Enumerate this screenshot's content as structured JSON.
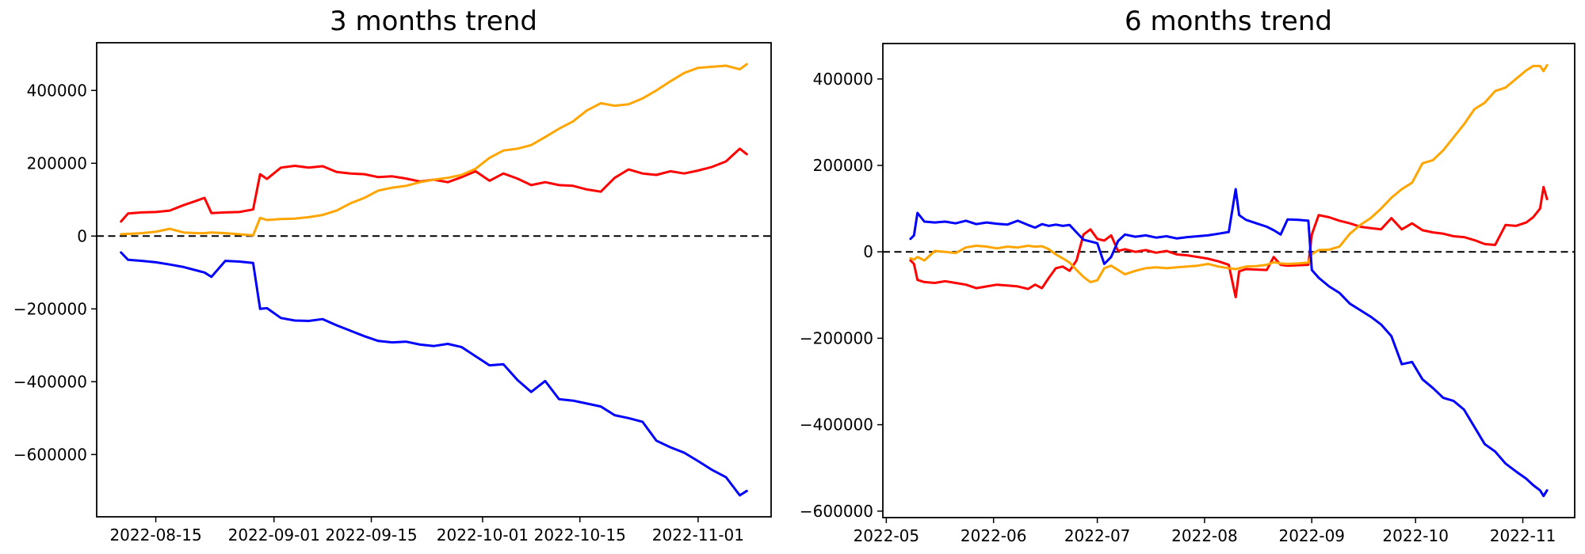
{
  "figure": {
    "background": "#ffffff"
  },
  "colors": {
    "red": "#ff0000",
    "orange": "#ffa500",
    "blue": "#0000ff",
    "zero_line": "#000000",
    "spine": "#000000"
  },
  "chart_data": [
    {
      "type": "line",
      "title": "3 months trend",
      "xlabel": "",
      "ylabel": "",
      "grid": false,
      "legend": null,
      "xlim": [
        "2022-08-06T12:00:00Z",
        "2022-11-11T12:00:00Z"
      ],
      "ylim": [
        -771000,
        531000
      ],
      "yticks": [
        -600000,
        -400000,
        -200000,
        0,
        200000,
        400000
      ],
      "xticks": [
        {
          "date": "2022-08-15",
          "label": "2022-08-15"
        },
        {
          "date": "2022-09-01",
          "label": "2022-09-01"
        },
        {
          "date": "2022-09-15",
          "label": "2022-09-15"
        },
        {
          "date": "2022-10-01",
          "label": "2022-10-01"
        },
        {
          "date": "2022-10-15",
          "label": "2022-10-15"
        },
        {
          "date": "2022-11-01",
          "label": "2022-11-01"
        }
      ],
      "zero_line": {
        "style": "dashed",
        "color": "#000000",
        "y": 0
      },
      "x": [
        "2022-08-10",
        "2022-08-11",
        "2022-08-13",
        "2022-08-15",
        "2022-08-17",
        "2022-08-19",
        "2022-08-21",
        "2022-08-22",
        "2022-08-23",
        "2022-08-25",
        "2022-08-27",
        "2022-08-29",
        "2022-08-30",
        "2022-08-31",
        "2022-09-02",
        "2022-09-04",
        "2022-09-06",
        "2022-09-08",
        "2022-09-10",
        "2022-09-12",
        "2022-09-14",
        "2022-09-16",
        "2022-09-18",
        "2022-09-20",
        "2022-09-22",
        "2022-09-24",
        "2022-09-26",
        "2022-09-28",
        "2022-09-30",
        "2022-10-02",
        "2022-10-04",
        "2022-10-06",
        "2022-10-08",
        "2022-10-10",
        "2022-10-12",
        "2022-10-14",
        "2022-10-16",
        "2022-10-18",
        "2022-10-20",
        "2022-10-22",
        "2022-10-24",
        "2022-10-26",
        "2022-10-28",
        "2022-10-30",
        "2022-11-01",
        "2022-11-03",
        "2022-11-05",
        "2022-11-07",
        "2022-11-08"
      ],
      "series": [
        {
          "name": "red",
          "color": "#ff0000",
          "values": [
            40000,
            62000,
            65000,
            66000,
            70000,
            85000,
            98000,
            105000,
            63000,
            65000,
            66000,
            73000,
            170000,
            157000,
            188000,
            193000,
            188000,
            192000,
            176000,
            172000,
            170000,
            162000,
            164000,
            158000,
            150000,
            155000,
            148000,
            162000,
            178000,
            152000,
            172000,
            158000,
            140000,
            148000,
            140000,
            138000,
            128000,
            122000,
            160000,
            183000,
            172000,
            168000,
            178000,
            172000,
            180000,
            190000,
            205000,
            240000,
            225000
          ]
        },
        {
          "name": "orange",
          "color": "#ffa500",
          "values": [
            5000,
            6000,
            8000,
            12000,
            20000,
            10000,
            8000,
            8000,
            10000,
            8000,
            5000,
            2000,
            50000,
            44000,
            47000,
            48000,
            52000,
            58000,
            70000,
            90000,
            105000,
            125000,
            133000,
            138000,
            148000,
            155000,
            160000,
            168000,
            185000,
            215000,
            235000,
            240000,
            250000,
            272000,
            295000,
            315000,
            345000,
            365000,
            358000,
            362000,
            378000,
            400000,
            425000,
            448000,
            462000,
            465000,
            468000,
            458000,
            472000
          ]
        },
        {
          "name": "blue",
          "color": "#0000ff",
          "values": [
            -45000,
            -65000,
            -68000,
            -72000,
            -78000,
            -85000,
            -95000,
            -100000,
            -112000,
            -68000,
            -70000,
            -74000,
            -200000,
            -198000,
            -225000,
            -232000,
            -233000,
            -228000,
            -245000,
            -260000,
            -275000,
            -288000,
            -292000,
            -290000,
            -298000,
            -302000,
            -296000,
            -305000,
            -330000,
            -355000,
            -352000,
            -395000,
            -428000,
            -398000,
            -448000,
            -452000,
            -460000,
            -468000,
            -492000,
            -500000,
            -510000,
            -562000,
            -580000,
            -595000,
            -618000,
            -642000,
            -662000,
            -712000,
            -700000
          ]
        }
      ]
    },
    {
      "type": "line",
      "title": "6 months trend",
      "xlabel": "",
      "ylabel": "",
      "grid": false,
      "legend": null,
      "xlim": [
        "2022-04-30T00:00:00Z",
        "2022-11-16T00:00:00Z"
      ],
      "ylim": [
        -615000,
        482000
      ],
      "yticks": [
        -600000,
        -400000,
        -200000,
        0,
        200000,
        400000
      ],
      "xticks": [
        {
          "date": "2022-05-01",
          "label": "2022-05"
        },
        {
          "date": "2022-06-01",
          "label": "2022-06"
        },
        {
          "date": "2022-07-01",
          "label": "2022-07"
        },
        {
          "date": "2022-08-01",
          "label": "2022-08"
        },
        {
          "date": "2022-09-01",
          "label": "2022-09"
        },
        {
          "date": "2022-10-01",
          "label": "2022-10"
        },
        {
          "date": "2022-11-01",
          "label": "2022-11"
        }
      ],
      "zero_line": {
        "style": "dashed",
        "color": "#000000",
        "y": 0
      },
      "x": [
        "2022-05-08",
        "2022-05-09",
        "2022-05-10",
        "2022-05-12",
        "2022-05-15",
        "2022-05-18",
        "2022-05-21",
        "2022-05-24",
        "2022-05-27",
        "2022-05-30",
        "2022-06-02",
        "2022-06-05",
        "2022-06-08",
        "2022-06-11",
        "2022-06-13",
        "2022-06-15",
        "2022-06-17",
        "2022-06-19",
        "2022-06-21",
        "2022-06-23",
        "2022-06-25",
        "2022-06-27",
        "2022-06-29",
        "2022-07-01",
        "2022-07-03",
        "2022-07-05",
        "2022-07-07",
        "2022-07-09",
        "2022-07-12",
        "2022-07-15",
        "2022-07-18",
        "2022-07-21",
        "2022-07-24",
        "2022-07-27",
        "2022-07-30",
        "2022-08-02",
        "2022-08-05",
        "2022-08-08",
        "2022-08-10",
        "2022-08-11",
        "2022-08-13",
        "2022-08-16",
        "2022-08-19",
        "2022-08-21",
        "2022-08-23",
        "2022-08-25",
        "2022-08-28",
        "2022-08-31",
        "2022-09-01",
        "2022-09-03",
        "2022-09-06",
        "2022-09-09",
        "2022-09-12",
        "2022-09-15",
        "2022-09-18",
        "2022-09-21",
        "2022-09-24",
        "2022-09-27",
        "2022-09-30",
        "2022-10-03",
        "2022-10-06",
        "2022-10-09",
        "2022-10-12",
        "2022-10-15",
        "2022-10-18",
        "2022-10-21",
        "2022-10-24",
        "2022-10-27",
        "2022-10-30",
        "2022-11-02",
        "2022-11-04",
        "2022-11-06",
        "2022-11-07",
        "2022-11-08"
      ],
      "series": [
        {
          "name": "red",
          "color": "#ff0000",
          "values": [
            -20000,
            -28000,
            -65000,
            -70000,
            -72000,
            -68000,
            -72000,
            -76000,
            -84000,
            -80000,
            -76000,
            -78000,
            -80000,
            -86000,
            -76000,
            -84000,
            -60000,
            -38000,
            -34000,
            -44000,
            -20000,
            40000,
            52000,
            30000,
            26000,
            38000,
            2000,
            6000,
            0,
            4000,
            -2000,
            2000,
            -6000,
            -8000,
            -12000,
            -16000,
            -22000,
            -30000,
            -105000,
            -45000,
            -40000,
            -41000,
            -42000,
            -12000,
            -30000,
            -32000,
            -31000,
            -30000,
            40000,
            85000,
            80000,
            72000,
            66000,
            58000,
            55000,
            52000,
            78000,
            52000,
            66000,
            50000,
            45000,
            42000,
            36000,
            34000,
            27000,
            18000,
            16000,
            62000,
            60000,
            68000,
            80000,
            100000,
            150000,
            122000
          ]
        },
        {
          "name": "orange",
          "color": "#ffa500",
          "values": [
            -15000,
            -18000,
            -12000,
            -20000,
            2000,
            0,
            -3000,
            10000,
            14000,
            12000,
            8000,
            12000,
            10000,
            14000,
            12000,
            13000,
            6000,
            -6000,
            -15000,
            -25000,
            -42000,
            -58000,
            -70000,
            -66000,
            -38000,
            -32000,
            -42000,
            -52000,
            -44000,
            -38000,
            -36000,
            -38000,
            -36000,
            -34000,
            -32000,
            -28000,
            -34000,
            -38000,
            -40000,
            -38000,
            -34000,
            -33000,
            -30000,
            -24000,
            -27000,
            -28000,
            -27000,
            -25000,
            -5000,
            4000,
            5000,
            12000,
            42000,
            62000,
            78000,
            100000,
            125000,
            145000,
            160000,
            205000,
            212000,
            235000,
            265000,
            295000,
            330000,
            345000,
            372000,
            380000,
            400000,
            420000,
            430000,
            430000,
            418000,
            432000
          ]
        },
        {
          "name": "blue",
          "color": "#0000ff",
          "values": [
            30000,
            38000,
            90000,
            70000,
            68000,
            70000,
            66000,
            72000,
            64000,
            68000,
            65000,
            63000,
            72000,
            62000,
            56000,
            64000,
            60000,
            63000,
            60000,
            62000,
            45000,
            28000,
            24000,
            20000,
            -28000,
            -12000,
            25000,
            40000,
            35000,
            38000,
            33000,
            36000,
            31000,
            34000,
            36000,
            38000,
            42000,
            46000,
            145000,
            85000,
            74000,
            66000,
            58000,
            50000,
            40000,
            75000,
            74000,
            72000,
            -42000,
            -60000,
            -80000,
            -95000,
            -120000,
            -135000,
            -150000,
            -168000,
            -195000,
            -260000,
            -255000,
            -295000,
            -315000,
            -338000,
            -345000,
            -365000,
            -405000,
            -445000,
            -462000,
            -490000,
            -508000,
            -525000,
            -540000,
            -552000,
            -565000,
            -552000
          ]
        }
      ]
    }
  ]
}
